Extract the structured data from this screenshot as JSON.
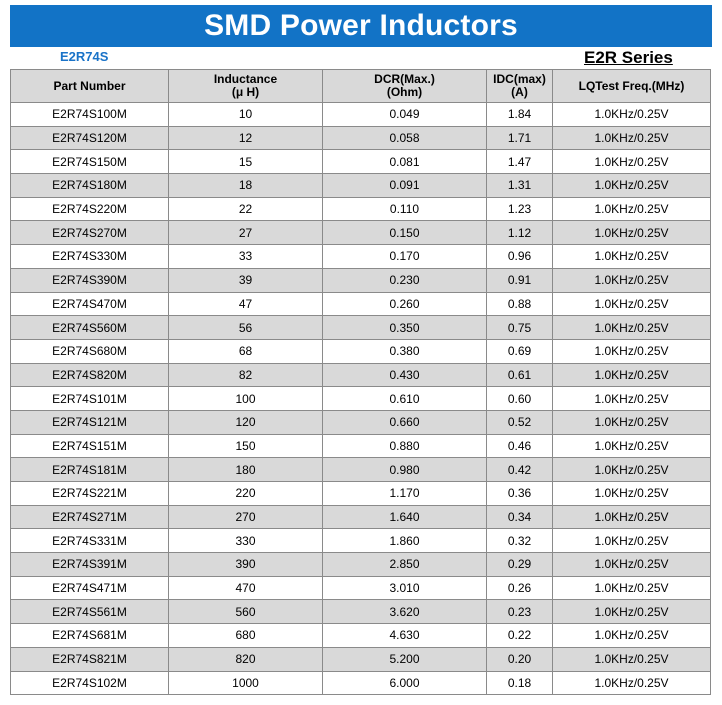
{
  "header": {
    "title": "SMD Power Inductors",
    "model": "E2R74S",
    "series": "E2R Series"
  },
  "colors": {
    "title_bar": "#1273c6",
    "model_text": "#1a73c8",
    "row_shade": "#d9d9d9"
  },
  "table": {
    "columns": [
      [
        "Part Number"
      ],
      [
        "Inductance",
        "(μ H)"
      ],
      [
        "DCR(Max.)",
        "(Ohm)"
      ],
      [
        "IDC(max)",
        "(A)"
      ],
      [
        "LQTest Freq.(MHz)"
      ]
    ],
    "rows": [
      [
        "E2R74S100M",
        "10",
        "0.049",
        "1.84",
        "1.0KHz/0.25V"
      ],
      [
        "E2R74S120M",
        "12",
        "0.058",
        "1.71",
        "1.0KHz/0.25V"
      ],
      [
        "E2R74S150M",
        "15",
        "0.081",
        "1.47",
        "1.0KHz/0.25V"
      ],
      [
        "E2R74S180M",
        "18",
        "0.091",
        "1.31",
        "1.0KHz/0.25V"
      ],
      [
        "E2R74S220M",
        "22",
        "0.110",
        "1.23",
        "1.0KHz/0.25V"
      ],
      [
        "E2R74S270M",
        "27",
        "0.150",
        "1.12",
        "1.0KHz/0.25V"
      ],
      [
        "E2R74S330M",
        "33",
        "0.170",
        "0.96",
        "1.0KHz/0.25V"
      ],
      [
        "E2R74S390M",
        "39",
        "0.230",
        "0.91",
        "1.0KHz/0.25V"
      ],
      [
        "E2R74S470M",
        "47",
        "0.260",
        "0.88",
        "1.0KHz/0.25V"
      ],
      [
        "E2R74S560M",
        "56",
        "0.350",
        "0.75",
        "1.0KHz/0.25V"
      ],
      [
        "E2R74S680M",
        "68",
        "0.380",
        "0.69",
        "1.0KHz/0.25V"
      ],
      [
        "E2R74S820M",
        "82",
        "0.430",
        "0.61",
        "1.0KHz/0.25V"
      ],
      [
        "E2R74S101M",
        "100",
        "0.610",
        "0.60",
        "1.0KHz/0.25V"
      ],
      [
        "E2R74S121M",
        "120",
        "0.660",
        "0.52",
        "1.0KHz/0.25V"
      ],
      [
        "E2R74S151M",
        "150",
        "0.880",
        "0.46",
        "1.0KHz/0.25V"
      ],
      [
        "E2R74S181M",
        "180",
        "0.980",
        "0.42",
        "1.0KHz/0.25V"
      ],
      [
        "E2R74S221M",
        "220",
        "1.170",
        "0.36",
        "1.0KHz/0.25V"
      ],
      [
        "E2R74S271M",
        "270",
        "1.640",
        "0.34",
        "1.0KHz/0.25V"
      ],
      [
        "E2R74S331M",
        "330",
        "1.860",
        "0.32",
        "1.0KHz/0.25V"
      ],
      [
        "E2R74S391M",
        "390",
        "2.850",
        "0.29",
        "1.0KHz/0.25V"
      ],
      [
        "E2R74S471M",
        "470",
        "3.010",
        "0.26",
        "1.0KHz/0.25V"
      ],
      [
        "E2R74S561M",
        "560",
        "3.620",
        "0.23",
        "1.0KHz/0.25V"
      ],
      [
        "E2R74S681M",
        "680",
        "4.630",
        "0.22",
        "1.0KHz/0.25V"
      ],
      [
        "E2R74S821M",
        "820",
        "5.200",
        "0.20",
        "1.0KHz/0.25V"
      ],
      [
        "E2R74S102M",
        "1000",
        "6.000",
        "0.18",
        "1.0KHz/0.25V"
      ]
    ]
  }
}
